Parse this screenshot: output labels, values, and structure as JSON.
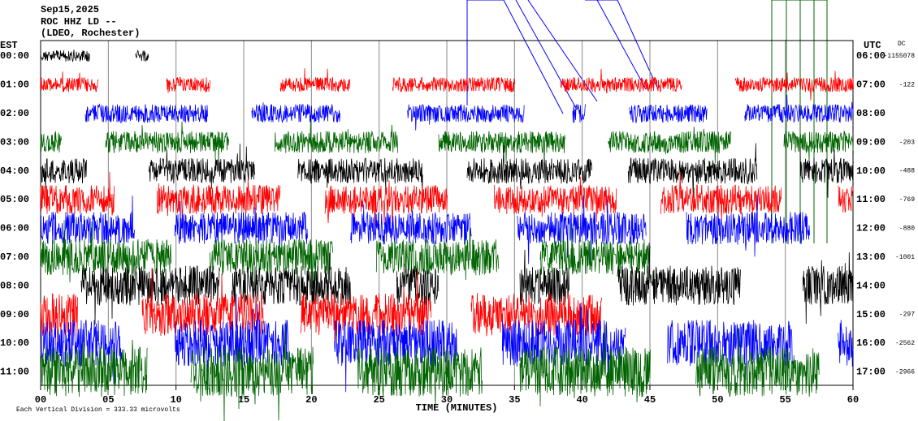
{
  "header": {
    "date": "Sep15,2025",
    "station": "ROC HHZ LD --",
    "place": "(LDEO, Rochester)"
  },
  "left_label": "EST",
  "right_label": "UTC",
  "dc_label": "DC",
  "x_label": "TIME (MINUTES)",
  "footnote": "Each Vertical Division = 333.33 microvolts",
  "xlim": [
    0,
    60
  ],
  "xticks": [
    {
      "value": 0,
      "label": "00"
    },
    {
      "value": 5,
      "label": "05"
    },
    10,
    15,
    20,
    25,
    30,
    35,
    40,
    45,
    50,
    55,
    60
  ],
  "rows": [
    {
      "est": "00:00",
      "utc": "06:00",
      "dc": -1155078,
      "color": "#000000",
      "segments": [
        [
          0,
          3.6
        ],
        [
          7,
          8
        ]
      ]
    },
    {
      "est": "01:00",
      "utc": "07:00",
      "dc": -122,
      "color": "#ff0000",
      "segments": [
        [
          0,
          4.2
        ],
        [
          9.3,
          12.5
        ],
        [
          17.7,
          22.8
        ],
        [
          26,
          35
        ],
        [
          38.4,
          47.4
        ],
        [
          51.3,
          60
        ]
      ]
    },
    {
      "est": "02:00",
      "utc": "08:00",
      "dc": null,
      "color": "#0000ff",
      "segments": [
        [
          3.3,
          12.3
        ],
        [
          15.6,
          22.1
        ],
        [
          27.1,
          35.7
        ],
        [
          39.3,
          40.2
        ],
        [
          43.5,
          49.2
        ],
        [
          52,
          60
        ]
      ]
    },
    {
      "est": "03:00",
      "utc": "09:00",
      "dc": -203,
      "color": "#006400",
      "segments": [
        [
          0,
          1.5
        ],
        [
          4.8,
          13.9
        ],
        [
          17.3,
          26.4
        ],
        [
          29.4,
          38.7
        ],
        [
          41.9,
          51
        ],
        [
          54.9,
          60
        ]
      ]
    },
    {
      "est": "04:00",
      "utc": "10:00",
      "dc": -488,
      "color": "#000000",
      "segments": [
        [
          0,
          3.4
        ],
        [
          8,
          15.8
        ],
        [
          19,
          28.2
        ],
        [
          31.5,
          40.7
        ],
        [
          43.4,
          52.9
        ],
        [
          56.1,
          60
        ]
      ]
    },
    {
      "est": "05:00",
      "utc": "11:00",
      "dc": -769,
      "color": "#ff0000",
      "segments": [
        [
          0,
          5.4
        ],
        [
          8.6,
          17.7
        ],
        [
          21,
          30
        ],
        [
          33.5,
          42.5
        ],
        [
          45.8,
          54.7
        ],
        [
          58.9,
          60
        ]
      ]
    },
    {
      "est": "06:00",
      "utc": "12:00",
      "dc": -880,
      "color": "#0000ff",
      "segments": [
        [
          0,
          6.9
        ],
        [
          9.9,
          19.7
        ],
        [
          22.9,
          31.8
        ],
        [
          35.2,
          44.7
        ],
        [
          47.7,
          56.8
        ]
      ]
    },
    {
      "est": "07:00",
      "utc": "13:00",
      "dc": -1001,
      "color": "#006400",
      "segments": [
        [
          0,
          9.6
        ],
        [
          12.5,
          21.6
        ],
        [
          24.8,
          33.8
        ],
        [
          36.9,
          45
        ]
      ]
    },
    {
      "est": "08:00",
      "utc": "14:00",
      "dc": null,
      "color": "#000000",
      "segments": [
        [
          3,
          13.2
        ],
        [
          14.1,
          22.9
        ],
        [
          26.3,
          29.4
        ],
        [
          35.4,
          39
        ],
        [
          42.6,
          51.7
        ],
        [
          56.3,
          60
        ]
      ]
    },
    {
      "est": "09:00",
      "utc": "15:00",
      "dc": -297,
      "color": "#ff0000",
      "segments": [
        [
          0,
          2.7
        ],
        [
          7.5,
          16.5
        ],
        [
          19.2,
          28.8
        ],
        [
          31.8,
          41.4
        ]
      ]
    },
    {
      "est": "10:00",
      "utc": "16:00",
      "dc": -2562,
      "color": "#0000ff",
      "segments": [
        [
          0,
          6
        ],
        [
          9.9,
          18.3
        ],
        [
          21.7,
          30.7
        ],
        [
          34.1,
          43.2
        ],
        [
          46.3,
          55.5
        ],
        [
          58.9,
          60
        ]
      ]
    },
    {
      "est": "11:00",
      "utc": "17:00",
      "dc": -2966,
      "color": "#006400",
      "segments": [
        [
          0,
          7.9
        ],
        [
          11.1,
          20.1
        ],
        [
          23.4,
          32.6
        ],
        [
          35.4,
          45
        ],
        [
          48.4,
          57.5
        ]
      ]
    }
  ]
}
